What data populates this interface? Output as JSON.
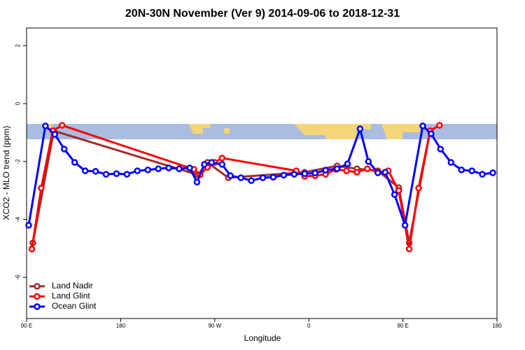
{
  "chart_data": {
    "type": "line",
    "title": "20N-30N November (Ver 9)   2014-09-06 to 2018-12-31",
    "x_label": "Longitude",
    "y_label": "XCO2 - MLO trend (ppm)",
    "xlim": [
      90,
      540
    ],
    "ylim": [
      -7.42,
      2.61
    ],
    "xticks": [
      {
        "value": 90,
        "label": "90 E"
      },
      180,
      {
        "value": 270,
        "label": "90 W"
      },
      {
        "value": 360,
        "label": "0"
      },
      {
        "value": 450,
        "label": "90 E"
      },
      {
        "value": 540,
        "label": "180"
      }
    ],
    "yticks": [
      2,
      0,
      -2,
      -4,
      -6
    ],
    "legend": "bottomleft",
    "series": [
      {
        "name": "Land Nadir",
        "color": "#a52a2a",
        "x": [
          96,
          116,
          254,
          263,
          283,
          356,
          387,
          406,
          426,
          446,
          456,
          476
        ],
        "values": [
          -4.81,
          -0.94,
          -2.46,
          -2.03,
          -2.56,
          -2.37,
          -2.15,
          -2.25,
          -2.32,
          -2.9,
          -4.81,
          -0.94
        ]
      },
      {
        "name": "Land Glint",
        "color": "#ff0000",
        "x": [
          95,
          104,
          115,
          124,
          250,
          256,
          263,
          270,
          277,
          348,
          356,
          366,
          376,
          386,
          396,
          406,
          416,
          426,
          436,
          446,
          456,
          465,
          476,
          485
        ],
        "values": [
          -5.02,
          -2.92,
          -0.94,
          -0.75,
          -2.27,
          -2.46,
          -2.2,
          -2.03,
          -1.88,
          -2.32,
          -2.51,
          -2.49,
          -2.44,
          -2.27,
          -2.32,
          -2.37,
          -2.25,
          -2.37,
          -2.32,
          -3.0,
          -5.02,
          -2.92,
          -0.94,
          -0.75
        ]
      },
      {
        "name": "Ocean Glint",
        "color": "#0000ff",
        "x": [
          92,
          108,
          117,
          126,
          136,
          146,
          156,
          166,
          176,
          186,
          196,
          206,
          216,
          226,
          236,
          246,
          253,
          260,
          267,
          277,
          285,
          295,
          305,
          316,
          326,
          336,
          346,
          356,
          366,
          376,
          387,
          397,
          409,
          417,
          426,
          433,
          442,
          452,
          469,
          477,
          486,
          496,
          506,
          516,
          526,
          536
        ],
        "values": [
          -4.2,
          -0.77,
          -1.06,
          -1.57,
          -2.03,
          -2.32,
          -2.34,
          -2.44,
          -2.42,
          -2.44,
          -2.32,
          -2.29,
          -2.25,
          -2.22,
          -2.25,
          -2.22,
          -2.71,
          -2.1,
          -2.03,
          -2.1,
          -2.49,
          -2.56,
          -2.66,
          -2.56,
          -2.54,
          -2.47,
          -2.44,
          -2.42,
          -2.4,
          -2.3,
          -2.25,
          -2.08,
          -0.87,
          -2.0,
          -2.39,
          -2.37,
          -3.14,
          -4.2,
          -0.77,
          -1.04,
          -1.57,
          -2.03,
          -2.29,
          -2.32,
          -2.44,
          -2.39
        ]
      }
    ]
  }
}
